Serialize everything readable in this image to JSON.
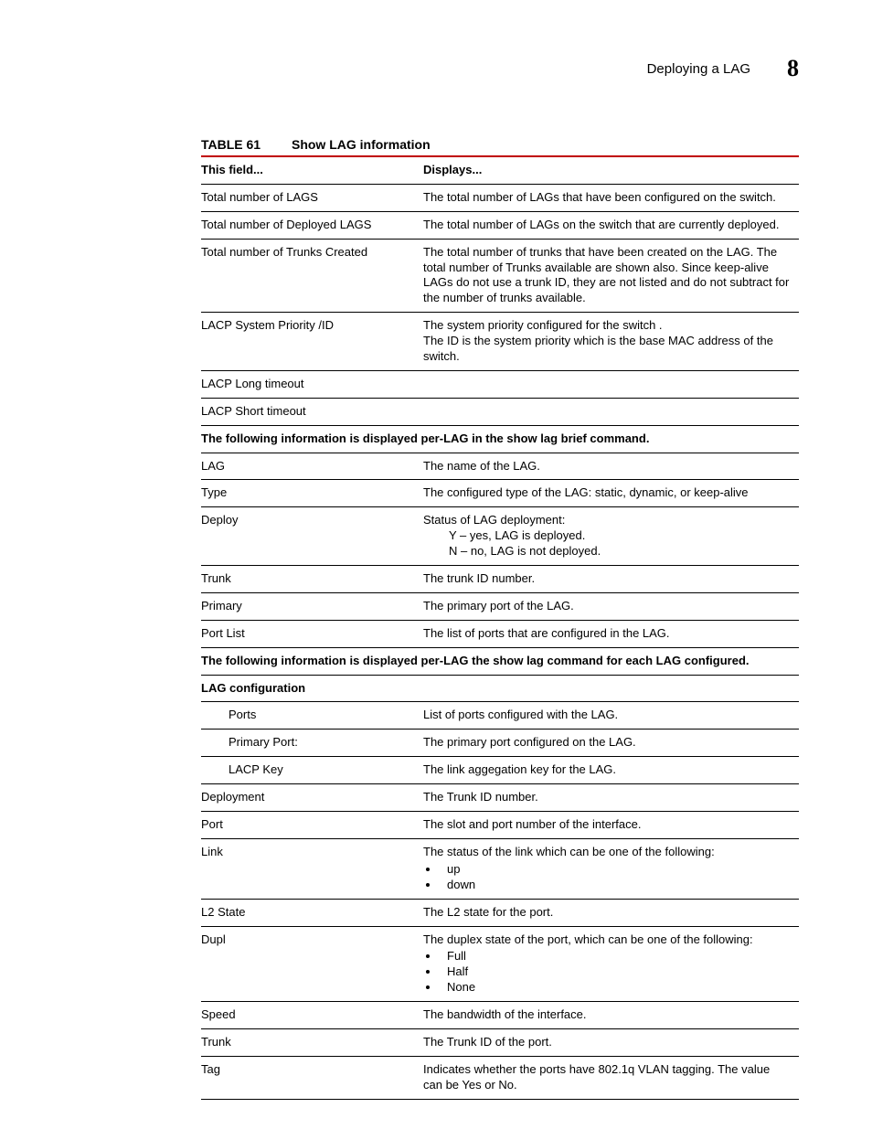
{
  "header": {
    "title": "Deploying a LAG",
    "chapter_number": "8"
  },
  "table": {
    "label": "TABLE 61",
    "title": "Show LAG information",
    "columns": [
      "This field...",
      "Displays..."
    ],
    "top_rows": [
      {
        "field": "Total number of LAGS",
        "display": "The total number of LAGs that have been configured on the switch."
      },
      {
        "field": "Total number of Deployed LAGS",
        "display": "The total number of LAGs on the switch that are currently deployed."
      },
      {
        "field": "Total number of Trunks Created",
        "display": "The total number of trunks that have been created on the LAG. The total number of Trunks available are shown also. Since keep-alive LAGs do not use a trunk ID, they are not listed and do not subtract for the number of trunks available."
      },
      {
        "field": "LACP System Priority /ID",
        "display": "The system priority configured for the switch .\nThe ID is the system priority which is the base MAC address of the switch."
      },
      {
        "field": "LACP Long timeout",
        "display": ""
      },
      {
        "field": "LACP Short timeout",
        "display": ""
      }
    ],
    "section_brief_heading": "The following information is displayed per-LAG in the show lag brief command.",
    "brief_rows": [
      {
        "field": "LAG",
        "display": "The name of the LAG."
      },
      {
        "field": "Type",
        "display": "The configured type of the LAG: static, dynamic, or keep-alive"
      },
      {
        "field": "Deploy",
        "display_intro": "Status of LAG deployment:",
        "status_lines": [
          "Y – yes, LAG is deployed.",
          "N – no, LAG is not deployed."
        ]
      },
      {
        "field": "Trunk",
        "display": "The trunk ID number."
      },
      {
        "field": "Primary",
        "display": "The primary port of the LAG."
      },
      {
        "field": "Port List",
        "display": "The list of ports that are configured in the LAG."
      }
    ],
    "section_config_heading": "The following information is displayed per-LAG the show lag  command for each LAG configured.",
    "config_subheading": "LAG configuration",
    "config_rows": [
      {
        "field": "Ports",
        "indent": true,
        "display": "List of ports configured with the LAG."
      },
      {
        "field": "Primary Port:",
        "indent": true,
        "display": "The primary port configured on the LAG."
      },
      {
        "field": "LACP Key",
        "indent": true,
        "display": "The link aggegation key for the LAG."
      },
      {
        "field": "Deployment",
        "display": "The Trunk ID number."
      },
      {
        "field": "Port",
        "display": "The slot and port number of the interface."
      },
      {
        "field": "Link",
        "display_intro": "The status of the link which can be one of the following:",
        "bullets": [
          "up",
          "down"
        ]
      },
      {
        "field": "L2 State",
        "display": "The L2 state for the port."
      },
      {
        "field": "Dupl",
        "display_intro": "The duplex state of the port, which can be one of the following:",
        "bullets": [
          "Full",
          "Half",
          "None"
        ]
      },
      {
        "field": "Speed",
        "display": "The bandwidth of the interface."
      },
      {
        "field": "Trunk",
        "display": "The Trunk ID of the port."
      },
      {
        "field": "Tag",
        "display": "Indicates whether the ports have 802.1q VLAN tagging.  The value can be Yes or No."
      }
    ]
  }
}
